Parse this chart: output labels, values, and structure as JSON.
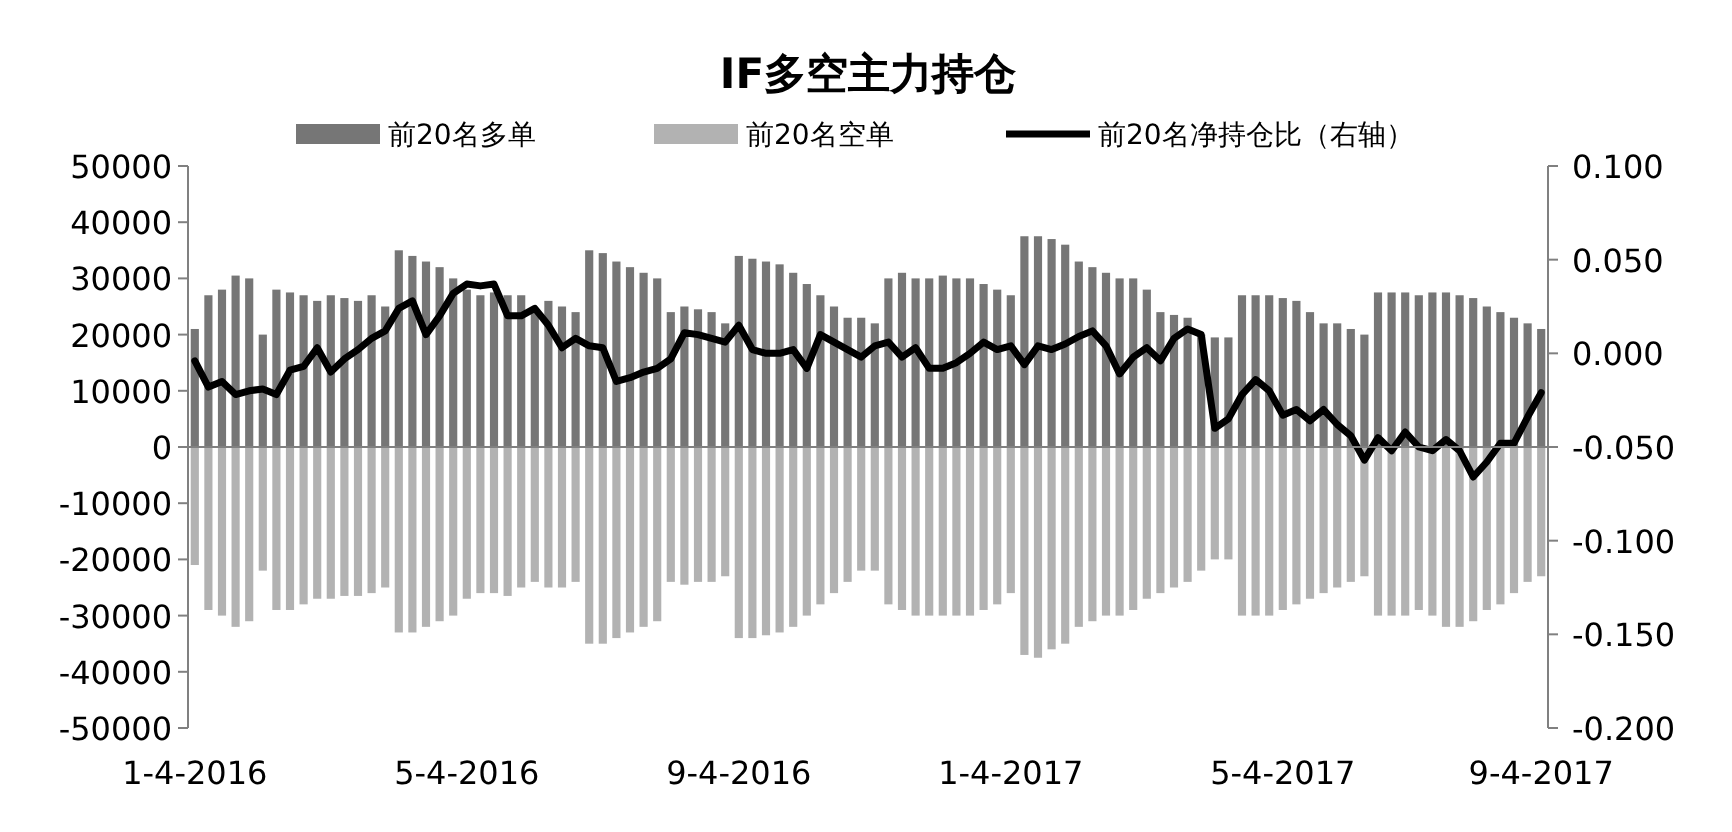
{
  "chart_data": {
    "type": "bar",
    "title": "IF多空主力持仓",
    "legend": "top",
    "stacked": true,
    "categories": [
      "1-4-2016",
      null,
      null,
      null,
      null,
      null,
      null,
      null,
      null,
      null,
      null,
      null,
      null,
      null,
      null,
      null,
      null,
      null,
      null,
      null,
      "5-4-2016",
      null,
      null,
      null,
      null,
      null,
      null,
      null,
      null,
      null,
      null,
      null,
      null,
      null,
      null,
      null,
      null,
      null,
      null,
      null,
      "9-4-2016",
      null,
      null,
      null,
      null,
      null,
      null,
      null,
      null,
      null,
      null,
      null,
      null,
      null,
      null,
      null,
      null,
      null,
      null,
      null,
      "1-4-2017",
      null,
      null,
      null,
      null,
      null,
      null,
      null,
      null,
      null,
      null,
      null,
      null,
      null,
      null,
      null,
      null,
      null,
      null,
      null,
      "5-4-2017",
      null,
      null,
      null,
      null,
      null,
      null,
      null,
      null,
      null,
      null,
      null,
      null,
      null,
      null,
      null,
      null,
      null,
      null,
      "9-4-2017"
    ],
    "series": [
      {
        "name": "前20名多单",
        "color": "#767676",
        "values": [
          21000,
          27000,
          28000,
          30500,
          30000,
          20000,
          28000,
          27500,
          27000,
          26000,
          27000,
          26500,
          26000,
          27000,
          25000,
          35000,
          34000,
          33000,
          32000,
          30000,
          28000,
          27000,
          27500,
          27000,
          27000,
          24000,
          26000,
          25000,
          24000,
          35000,
          34500,
          33000,
          32000,
          31000,
          30000,
          24000,
          25000,
          24500,
          24000,
          22000,
          34000,
          33500,
          33000,
          32500,
          31000,
          29000,
          27000,
          25000,
          23000,
          23000,
          22000,
          30000,
          31000,
          30000,
          30000,
          30500,
          30000,
          30000,
          29000,
          28000,
          27000,
          37500,
          37500,
          37000,
          36000,
          33000,
          32000,
          31000,
          30000,
          30000,
          28000,
          24000,
          23500,
          23000,
          20000,
          19500,
          19500,
          27000,
          27000,
          27000,
          26500,
          26000,
          24000,
          22000,
          22000,
          21000,
          20000,
          27500,
          27500,
          27500,
          27000,
          27500,
          27500,
          27000,
          26500,
          25000,
          24000,
          23000,
          22000,
          21000
        ]
      },
      {
        "name": "前20名空单",
        "color": "#b2b2b2",
        "values": [
          -21000,
          -29000,
          -30000,
          -32000,
          -31000,
          -22000,
          -29000,
          -29000,
          -28000,
          -27000,
          -27000,
          -26500,
          -26500,
          -26000,
          -25000,
          -33000,
          -33000,
          -32000,
          -31000,
          -30000,
          -27000,
          -26000,
          -26000,
          -26500,
          -25000,
          -24000,
          -25000,
          -25000,
          -24000,
          -35000,
          -35000,
          -34000,
          -33000,
          -32000,
          -31000,
          -24000,
          -24500,
          -24000,
          -24000,
          -23000,
          -34000,
          -34000,
          -33500,
          -33000,
          -32000,
          -30000,
          -28000,
          -26000,
          -24000,
          -22000,
          -22000,
          -28000,
          -29000,
          -30000,
          -30000,
          -30000,
          -30000,
          -30000,
          -29000,
          -28000,
          -26000,
          -37000,
          -37500,
          -36000,
          -35000,
          -32000,
          -31000,
          -30000,
          -30000,
          -29000,
          -27000,
          -26000,
          -25000,
          -24000,
          -22000,
          -20000,
          -20000,
          -30000,
          -30000,
          -30000,
          -29000,
          -28000,
          -27000,
          -26000,
          -25000,
          -24000,
          -23000,
          -30000,
          -30000,
          -30000,
          -29000,
          -30000,
          -32000,
          -32000,
          -31000,
          -29000,
          -28000,
          -26000,
          -24000,
          -23000
        ]
      },
      {
        "name": "前20名净持仓比（右轴）",
        "color": "#000000",
        "type": "line",
        "axis": "y2",
        "values": [
          -0.004,
          -0.018,
          -0.015,
          -0.022,
          -0.02,
          -0.019,
          -0.022,
          -0.009,
          -0.007,
          0.003,
          -0.01,
          -0.003,
          0.002,
          0.008,
          0.012,
          0.024,
          0.028,
          0.01,
          0.02,
          0.032,
          0.037,
          0.036,
          0.037,
          0.02,
          0.02,
          0.024,
          0.015,
          0.003,
          0.008,
          0.004,
          0.003,
          -0.015,
          -0.013,
          -0.01,
          -0.008,
          -0.003,
          0.011,
          0.01,
          0.008,
          0.006,
          0.015,
          0.002,
          0.0,
          0.0,
          0.002,
          -0.008,
          0.01,
          0.006,
          0.002,
          -0.002,
          0.004,
          0.006,
          -0.002,
          0.003,
          -0.008,
          -0.008,
          -0.005,
          0.0,
          0.006,
          0.002,
          0.004,
          -0.006,
          0.004,
          0.002,
          0.005,
          0.009,
          0.012,
          0.004,
          -0.011,
          -0.002,
          0.003,
          -0.004,
          0.008,
          0.013,
          0.01,
          -0.04,
          -0.035,
          -0.022,
          -0.014,
          -0.02,
          -0.033,
          -0.03,
          -0.036,
          -0.03,
          -0.038,
          -0.044,
          -0.057,
          -0.045,
          -0.052,
          -0.042,
          -0.05,
          -0.052,
          -0.046,
          -0.052,
          -0.066,
          -0.058,
          -0.048,
          -0.048,
          -0.034,
          -0.021
        ]
      }
    ],
    "ylim": [
      -50000,
      50000
    ],
    "yticks": [
      -50000,
      -40000,
      -30000,
      -20000,
      -10000,
      0,
      10000,
      20000,
      30000,
      40000,
      50000
    ],
    "y2lim": [
      -0.2,
      0.1
    ],
    "y2ticks": [
      {
        "value": -0.2,
        "label": "-0.200"
      },
      {
        "value": -0.15,
        "label": "-0.150"
      },
      {
        "value": -0.1,
        "label": "-0.100"
      },
      {
        "value": -0.05,
        "label": "-0.050"
      },
      {
        "value": 0,
        "label": "0.000"
      },
      {
        "value": 0.05,
        "label": "0.050"
      },
      {
        "value": 0.1,
        "label": "0.100"
      }
    ]
  }
}
